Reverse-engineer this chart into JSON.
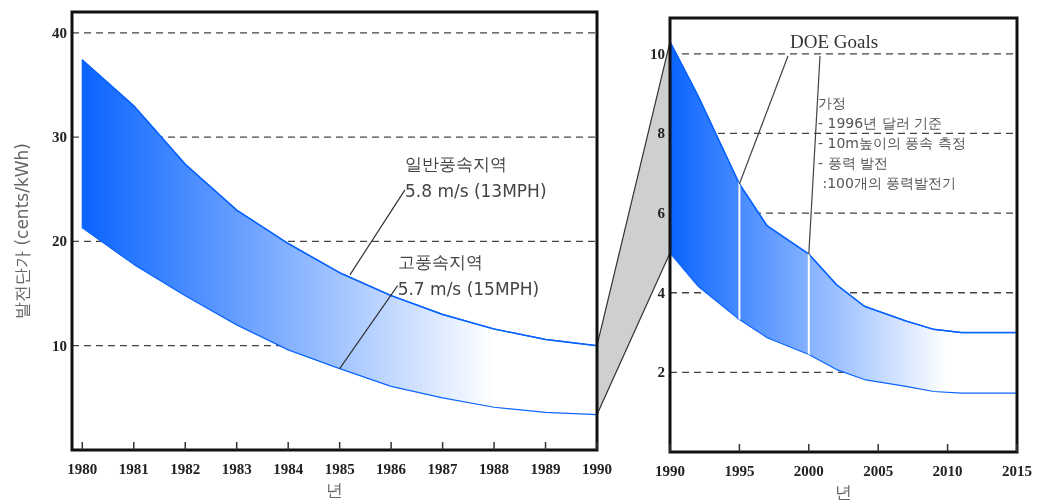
{
  "chart_data": [
    {
      "type": "line",
      "ylabel": "발전단가 (cents/kWh)",
      "xlabel": "년",
      "x": [
        1980,
        1981,
        1982,
        1983,
        1984,
        1985,
        1986,
        1987,
        1988,
        1989,
        1990
      ],
      "series": [
        {
          "color": "#0a64ff",
          "values": [
            37.4,
            33,
            27.4,
            23,
            19.8,
            17,
            14.8,
            13,
            11.6,
            10.6,
            10.0
          ],
          "upper": [
            37.4,
            33,
            27.4,
            23,
            19.8,
            17,
            14.8,
            13,
            11.6,
            10.6,
            10.0
          ],
          "lower": [
            21.3,
            17.8,
            14.8,
            12,
            9.6,
            7.8,
            6.1,
            5.0,
            4.1,
            3.6,
            3.4
          ]
        }
      ],
      "xlim": [
        1979.8,
        1990
      ],
      "xticks": [
        1980,
        1981,
        1982,
        1983,
        1984,
        1985,
        1986,
        1987,
        1988,
        1989,
        1990
      ],
      "ylim": [
        0,
        42
      ],
      "yticks": [
        10,
        20,
        30,
        40
      ],
      "grid": "y",
      "annotations": [
        {
          "text": "일반풍속지역\n5.8 m/s (13MPH)",
          "x": 1985.2,
          "y": 16.8
        },
        {
          "text": "고풍속지역\n5.7 m/s (15MPH)",
          "x": 1985,
          "y": 7.8
        }
      ]
    },
    {
      "type": "line",
      "xlabel": "년",
      "x": [
        1990,
        1992,
        1995,
        1997,
        2000,
        2002,
        2004,
        2007,
        2009,
        2011,
        2015
      ],
      "series": [
        {
          "color": "#0a64ff",
          "values": [
            10.3,
            8.96,
            6.73,
            5.68,
            4.97,
            4.2,
            3.66,
            3.29,
            3.08,
            3.0,
            3.0
          ],
          "upper": [
            10.3,
            8.96,
            6.73,
            5.68,
            4.97,
            4.2,
            3.66,
            3.29,
            3.08,
            3.0,
            3.0
          ],
          "lower": [
            5.0,
            4.17,
            3.33,
            2.87,
            2.45,
            2.07,
            1.82,
            1.65,
            1.52,
            1.48,
            1.48
          ]
        }
      ],
      "xlim": [
        1990,
        2015
      ],
      "xticks": [
        1990,
        1995,
        2000,
        2005,
        2010,
        2015
      ],
      "ylim": [
        0,
        10.9
      ],
      "yticks": [
        2,
        4,
        6,
        8,
        10
      ],
      "grid": "y",
      "ref_lines": [
        {
          "axis": "x",
          "value": 1995,
          "label": "DOE Goals",
          "color": "#ffffff"
        },
        {
          "axis": "x",
          "value": 2000,
          "label": null,
          "color": "#ffffff"
        }
      ],
      "annotations": [
        "가정\n- 1996년 달러 기준\n- 10m높이의 풍속 측정\n- 풍력 발전\n :100개의 풍력발전기"
      ]
    }
  ]
}
